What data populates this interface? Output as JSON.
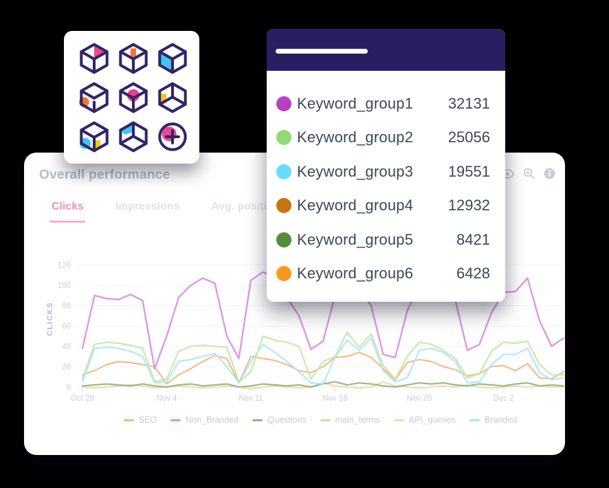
{
  "background_color": "#000000",
  "cubes_card": {
    "icons": [
      "cube-icon",
      "cube-icon",
      "cube-icon",
      "cube-icon",
      "cube-icon",
      "cube-icon",
      "cube-icon",
      "cube-icon",
      "add-cube-icon"
    ],
    "accent_colors": {
      "outline": "#312566",
      "pink": "#ef4590",
      "orange": "#f4743b",
      "cyan": "#41c6f2",
      "yellow": "#f6c51b"
    }
  },
  "keyword_panel": {
    "header_color": "#2a1e62",
    "rows": [
      {
        "label": "Keyword_group1",
        "value": "32131",
        "color": "#b840c8"
      },
      {
        "label": "Keyword_group2",
        "value": "25056",
        "color": "#92d977"
      },
      {
        "label": "Keyword_group3",
        "value": "19551",
        "color": "#66dcf9"
      },
      {
        "label": "Keyword_group4",
        "value": "12932",
        "color": "#c7760d"
      },
      {
        "label": "Keyword_group5",
        "value": "8421",
        "color": "#538e3a"
      },
      {
        "label": "Keyword_group6",
        "value": "6428",
        "color": "#f8991d"
      }
    ]
  },
  "chart_card": {
    "title": "Overall performance",
    "tabs": [
      {
        "label": "Clicks",
        "active": true
      },
      {
        "label": "Impressions",
        "active": false
      },
      {
        "label": "Avg. position",
        "active": false
      }
    ],
    "active_tab_color": "#f78fb3",
    "toolbar_icons": [
      "eye-icon",
      "zoom-in-icon",
      "info-icon"
    ],
    "chart_data": {
      "type": "line",
      "title": "",
      "xlabel": "",
      "ylabel": "CLICKS",
      "y_ticks": [
        0,
        20,
        40,
        60,
        80,
        100,
        120
      ],
      "ylim": [
        -4,
        128
      ],
      "x_tick_labels": [
        "Oct 28",
        "Nov 4",
        "Nov 11",
        "Nov 18",
        "Nov 25",
        "Dec 2"
      ],
      "x_tick_every": 7,
      "points": 41,
      "grid": true,
      "legend_position": "bottom",
      "draw_order": [
        "API_queries",
        "Questions",
        "SEO",
        "Branded",
        "main_terms",
        "Non_Branded"
      ],
      "series": [
        {
          "name": "SEO",
          "color": "#f1b97e",
          "values": [
            12,
            16,
            22,
            25,
            24,
            22,
            20,
            3,
            12,
            18,
            25,
            31,
            28,
            4,
            30,
            28,
            26,
            22,
            16,
            14,
            20,
            29,
            30,
            34,
            29,
            18,
            7,
            24,
            27,
            25,
            20,
            17,
            11,
            13,
            20,
            21,
            16,
            23,
            9,
            8,
            15
          ]
        },
        {
          "name": "Non_Branded",
          "color": "#d98fe2",
          "values": [
            38,
            90,
            87,
            86,
            91,
            85,
            18,
            50,
            88,
            100,
            107,
            102,
            50,
            28,
            105,
            113,
            108,
            88,
            70,
            37,
            45,
            90,
            102,
            96,
            80,
            32,
            29,
            75,
            100,
            105,
            98,
            85,
            36,
            42,
            73,
            93,
            94,
            107,
            65,
            40,
            48
          ]
        },
        {
          "name": "Questions",
          "color": "#8cb97f",
          "values": [
            1,
            2,
            3,
            2,
            1,
            3,
            1,
            0,
            2,
            3,
            1,
            2,
            3,
            0,
            1,
            3,
            2,
            1,
            2,
            0,
            3,
            5,
            2,
            4,
            3,
            1,
            0,
            2,
            4,
            3,
            4,
            2,
            1,
            3,
            2,
            1,
            3,
            4,
            1,
            2,
            1
          ]
        },
        {
          "name": "main_terms",
          "color": "#c3e7a5",
          "values": [
            8,
            42,
            44,
            43,
            41,
            38,
            5,
            8,
            35,
            40,
            41,
            40,
            39,
            5,
            15,
            50,
            46,
            44,
            40,
            8,
            25,
            30,
            54,
            39,
            52,
            21,
            8,
            30,
            44,
            42,
            36,
            28,
            9,
            13,
            35,
            44,
            43,
            45,
            22,
            12,
            12
          ]
        },
        {
          "name": "API_queries",
          "color": "#f7d7a6",
          "values": [
            0,
            -1,
            0,
            1,
            2,
            1,
            -1,
            0,
            1,
            0,
            -1,
            0,
            1,
            0,
            -2,
            0,
            1,
            0,
            -1,
            0,
            4,
            1,
            0,
            -1,
            0,
            5,
            1,
            0,
            -1,
            0,
            1,
            0,
            2,
            0,
            -1,
            0,
            1,
            0,
            1,
            0,
            0
          ]
        },
        {
          "name": "Branded",
          "color": "#a9e6f8",
          "values": [
            5,
            38,
            39,
            38,
            35,
            30,
            4,
            5,
            25,
            27,
            30,
            33,
            20,
            4,
            25,
            42,
            34,
            25,
            15,
            4,
            3,
            29,
            46,
            36,
            48,
            16,
            5,
            9,
            36,
            38,
            34,
            25,
            4,
            5,
            22,
            32,
            32,
            38,
            14,
            7,
            9
          ]
        }
      ]
    }
  }
}
